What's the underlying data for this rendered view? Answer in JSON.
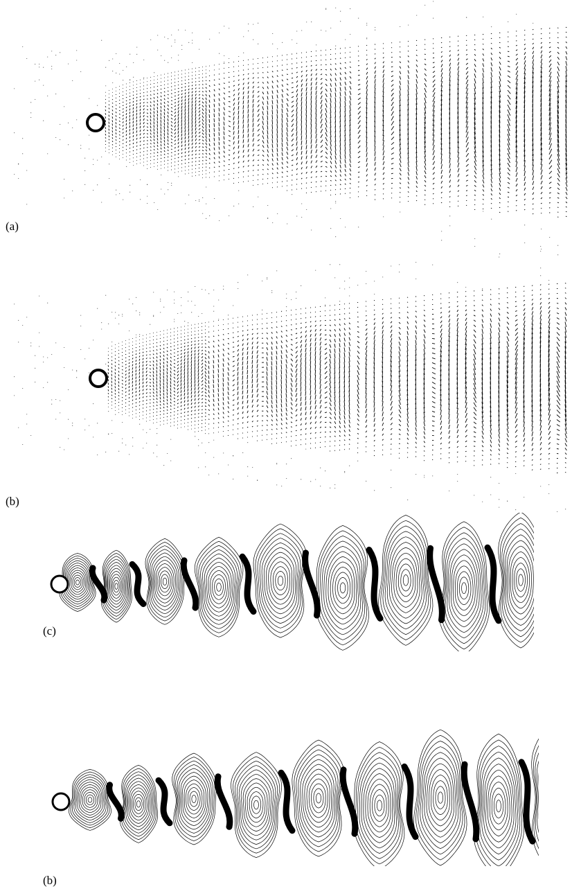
{
  "panels": [
    {
      "label": "(a)"
    },
    {
      "label": "(b)"
    },
    {
      "label": "(c)"
    },
    {
      "label": "(b)"
    }
  ]
}
